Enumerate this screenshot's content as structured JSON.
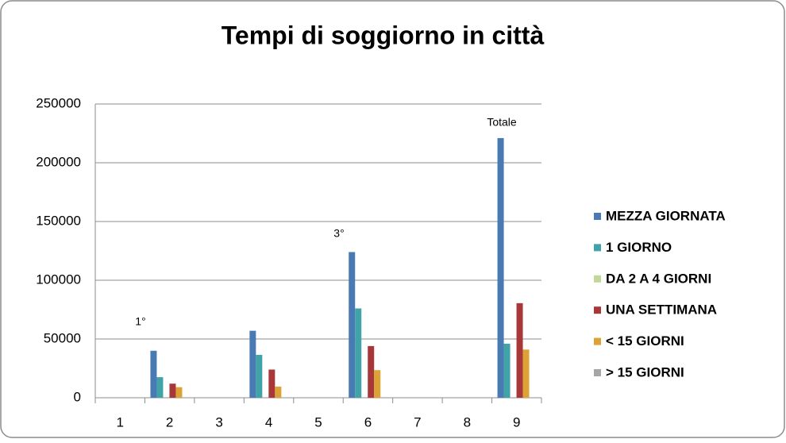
{
  "chart_data": {
    "type": "bar",
    "title": "Tempi di soggiorno in città",
    "categories": [
      "1",
      "2",
      "3",
      "4",
      "5",
      "6",
      "7",
      "8",
      "9"
    ],
    "series": [
      {
        "name": "MEZZA GIORNATA",
        "color": "#4a7ab3",
        "values": [
          null,
          40000,
          null,
          57000,
          null,
          124000,
          null,
          null,
          221000
        ]
      },
      {
        "name": "1 GIORNO",
        "color": "#3fa3a8",
        "values": [
          null,
          17500,
          null,
          36500,
          null,
          76000,
          null,
          null,
          46000
        ]
      },
      {
        "name": "DA 2 A 4 GIORNI",
        "color": "#c4d79b",
        "values": [
          null,
          0,
          null,
          0,
          null,
          0,
          null,
          null,
          0
        ]
      },
      {
        "name": "UNA SETTIMANA",
        "color": "#a8373a",
        "values": [
          null,
          12000,
          null,
          24000,
          null,
          44000,
          null,
          null,
          80500
        ]
      },
      {
        "name": "< 15 GIORNI",
        "color": "#dca235",
        "values": [
          null,
          9000,
          null,
          9500,
          null,
          23500,
          null,
          null,
          41000
        ]
      },
      {
        "name": "> 15 GIORNI",
        "color": "#a6a6a6",
        "values": [
          null,
          0,
          null,
          0,
          null,
          0,
          null,
          null,
          0
        ]
      }
    ],
    "annotations": [
      "1°",
      "3°",
      "Totale"
    ],
    "ylim": [
      0,
      250000
    ],
    "yticks": [
      0,
      50000,
      100000,
      150000,
      200000,
      250000
    ],
    "grid": true,
    "legend": "right"
  }
}
